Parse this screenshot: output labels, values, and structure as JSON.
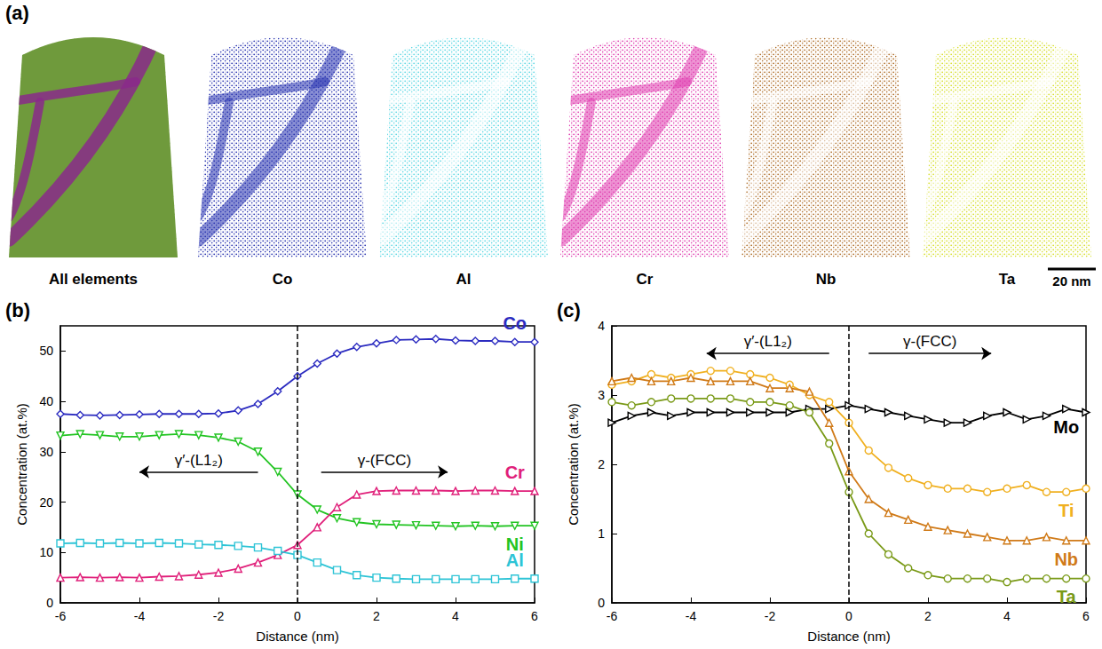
{
  "panel_a": {
    "panel": "(a)",
    "scale_bar": "20 nm",
    "maps": [
      {
        "name": "All elements",
        "color": "#6f9a3c"
      },
      {
        "name": "Co",
        "color": "#2a35b0"
      },
      {
        "name": "Al",
        "color": "#5fd8e4"
      },
      {
        "name": "Cr",
        "color": "#e040b0"
      },
      {
        "name": "Nb",
        "color": "#b0702c"
      },
      {
        "name": "Ta",
        "color": "#d8e030"
      }
    ]
  },
  "chart_data": [
    {
      "type": "line",
      "panel": "(b)",
      "x_label": "Distance (nm)",
      "y_label": "Concentration (at.%)",
      "x": [
        -6,
        -5.5,
        -5,
        -4.5,
        -4,
        -3.5,
        -3,
        -2.5,
        -2,
        -1.5,
        -1,
        -0.5,
        0,
        0.5,
        1,
        1.5,
        2,
        2.5,
        3,
        3.5,
        4,
        4.5,
        5,
        5.5,
        6
      ],
      "xlim": [
        -6,
        6
      ],
      "xticks": [
        -6,
        -4,
        -2,
        0,
        2,
        4,
        6
      ],
      "ylim": [
        0,
        55
      ],
      "yticks": [
        0,
        10,
        20,
        30,
        40,
        50
      ],
      "interface_x": 0,
      "annotations": [
        "γ′-(L1₂)",
        "γ-(FCC)"
      ],
      "series": [
        {
          "name": "Co",
          "color": "#2b2bc0",
          "marker": "diamond",
          "values": [
            37.5,
            37.3,
            37.2,
            37.3,
            37.4,
            37.5,
            37.5,
            37.5,
            37.6,
            38.2,
            39.5,
            42,
            45,
            47.5,
            49.5,
            50.8,
            51.5,
            52.2,
            52.3,
            52.4,
            52.1,
            52,
            52,
            51.8,
            51.8
          ]
        },
        {
          "name": "Ni",
          "color": "#22c422",
          "marker": "triangle-down",
          "values": [
            33.2,
            33.5,
            33.3,
            33,
            33,
            33.3,
            33.5,
            33.3,
            32.8,
            32,
            30,
            26,
            21.5,
            18.5,
            16.8,
            16,
            15.6,
            15.5,
            15.4,
            15.3,
            15.2,
            15.3,
            15.2,
            15.3,
            15.3
          ]
        },
        {
          "name": "Cr",
          "color": "#e0207a",
          "marker": "triangle",
          "values": [
            5,
            5.1,
            5,
            5.1,
            5,
            5.2,
            5.3,
            5.6,
            6,
            6.8,
            8,
            9.5,
            11.5,
            15,
            19,
            21.5,
            22.2,
            22.3,
            22.3,
            22.3,
            22.2,
            22.3,
            22.3,
            22.2,
            22.2
          ]
        },
        {
          "name": "Al",
          "color": "#2ec4d6",
          "marker": "square",
          "values": [
            11.8,
            11.9,
            11.8,
            11.9,
            11.8,
            11.9,
            11.8,
            11.6,
            11.5,
            11.3,
            11,
            10.3,
            9.5,
            8,
            6.5,
            5.5,
            5,
            4.8,
            4.7,
            4.7,
            4.7,
            4.7,
            4.7,
            4.8,
            4.8
          ]
        }
      ]
    },
    {
      "type": "line",
      "panel": "(c)",
      "x_label": "Distance (nm)",
      "y_label": "Concentration (at.%)",
      "x": [
        -6,
        -5.5,
        -5,
        -4.5,
        -4,
        -3.5,
        -3,
        -2.5,
        -2,
        -1.5,
        -1,
        -0.5,
        0,
        0.5,
        1,
        1.5,
        2,
        2.5,
        3,
        3.5,
        4,
        4.5,
        5,
        5.5,
        6
      ],
      "xlim": [
        -6,
        6
      ],
      "xticks": [
        -6,
        -4,
        -2,
        0,
        2,
        4,
        6
      ],
      "ylim": [
        0,
        4
      ],
      "yticks": [
        0,
        1,
        2,
        3,
        4
      ],
      "interface_x": 0,
      "annotations": [
        "γ′-(L1₂)",
        "γ-(FCC)"
      ],
      "series": [
        {
          "name": "Mo",
          "color": "#000000",
          "marker": "triangle-right",
          "values": [
            2.6,
            2.7,
            2.75,
            2.7,
            2.75,
            2.75,
            2.75,
            2.75,
            2.75,
            2.75,
            2.8,
            2.8,
            2.85,
            2.8,
            2.75,
            2.7,
            2.65,
            2.6,
            2.6,
            2.7,
            2.75,
            2.65,
            2.7,
            2.8,
            2.75
          ]
        },
        {
          "name": "Ti",
          "color": "#f0b020",
          "marker": "circle",
          "values": [
            3.15,
            3.2,
            3.3,
            3.25,
            3.3,
            3.35,
            3.35,
            3.3,
            3.25,
            3.15,
            3,
            2.9,
            2.6,
            2.2,
            1.95,
            1.8,
            1.7,
            1.65,
            1.65,
            1.6,
            1.65,
            1.7,
            1.6,
            1.6,
            1.65
          ]
        },
        {
          "name": "Nb",
          "color": "#d07a18",
          "marker": "triangle",
          "values": [
            3.2,
            3.25,
            3.2,
            3.2,
            3.25,
            3.2,
            3.2,
            3.2,
            3.1,
            3.1,
            3.05,
            2.6,
            1.9,
            1.5,
            1.3,
            1.2,
            1.1,
            1.05,
            1,
            0.95,
            0.9,
            0.9,
            0.95,
            0.9,
            0.9
          ]
        },
        {
          "name": "Ta",
          "color": "#7a9a18",
          "marker": "circle",
          "values": [
            2.9,
            2.85,
            2.9,
            2.95,
            2.95,
            2.95,
            2.95,
            2.9,
            2.9,
            2.85,
            2.75,
            2.3,
            1.6,
            1,
            0.7,
            0.5,
            0.4,
            0.35,
            0.35,
            0.35,
            0.3,
            0.35,
            0.35,
            0.35,
            0.35
          ]
        }
      ]
    }
  ]
}
